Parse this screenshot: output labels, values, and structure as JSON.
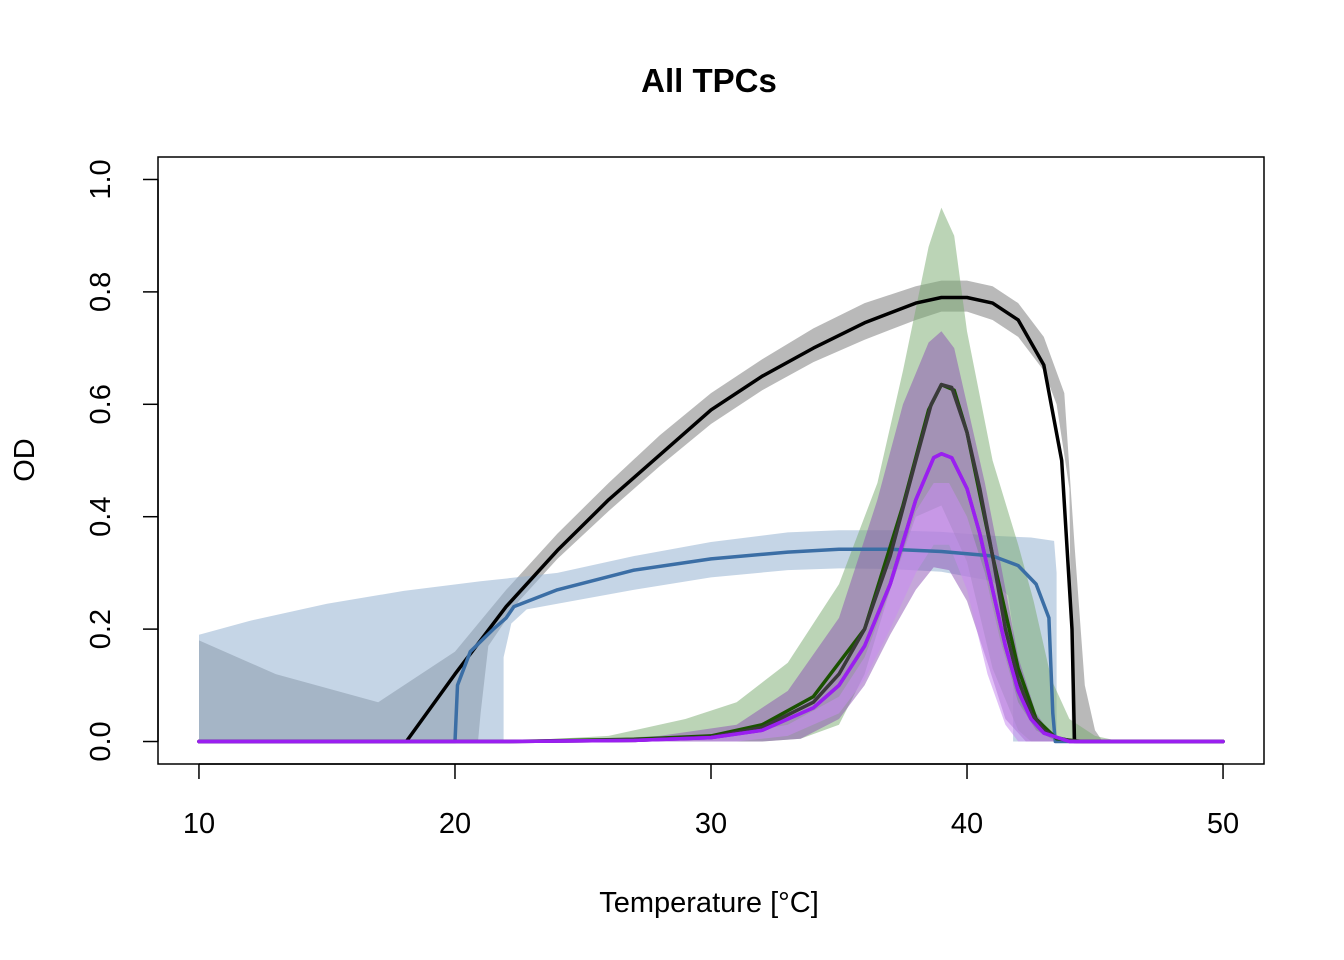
{
  "chart_data": {
    "type": "line",
    "title": "All TPCs",
    "xlabel": "Temperature [°C]",
    "ylabel": "OD",
    "xlim": [
      8.4,
      51.6
    ],
    "ylim": [
      -0.04,
      1.04
    ],
    "xticks": [
      10,
      20,
      30,
      40,
      50
    ],
    "yticks": [
      0.0,
      0.2,
      0.4,
      0.6,
      0.8,
      1.0
    ],
    "xtick_labels": [
      "10",
      "20",
      "30",
      "40",
      "50"
    ],
    "ytick_labels": [
      "0.0",
      "0.2",
      "0.4",
      "0.6",
      "0.8",
      "1.0"
    ],
    "grid": false,
    "legend": "none",
    "series": [
      {
        "color": "#000000",
        "band_color": "rgba(128,128,128,0.55)",
        "line": [
          [
            10,
            0
          ],
          [
            18.1,
            0
          ],
          [
            20,
            0.12
          ],
          [
            22,
            0.24
          ],
          [
            24,
            0.34
          ],
          [
            26,
            0.43
          ],
          [
            28,
            0.51
          ],
          [
            30,
            0.59
          ],
          [
            32,
            0.65
          ],
          [
            34,
            0.7
          ],
          [
            36,
            0.745
          ],
          [
            38,
            0.78
          ],
          [
            39,
            0.79
          ],
          [
            40,
            0.79
          ],
          [
            41,
            0.78
          ],
          [
            42,
            0.75
          ],
          [
            43,
            0.67
          ],
          [
            43.7,
            0.5
          ],
          [
            44.1,
            0.2
          ],
          [
            44.2,
            0
          ],
          [
            50,
            0
          ]
        ],
        "upper": [
          [
            10,
            0.18
          ],
          [
            13,
            0.12
          ],
          [
            17,
            0.07
          ],
          [
            20,
            0.16
          ],
          [
            22,
            0.27
          ],
          [
            24,
            0.37
          ],
          [
            26,
            0.46
          ],
          [
            28,
            0.545
          ],
          [
            30,
            0.62
          ],
          [
            32,
            0.68
          ],
          [
            34,
            0.735
          ],
          [
            36,
            0.78
          ],
          [
            38,
            0.81
          ],
          [
            39,
            0.82
          ],
          [
            40,
            0.82
          ],
          [
            41,
            0.81
          ],
          [
            42,
            0.78
          ],
          [
            43,
            0.72
          ],
          [
            43.8,
            0.62
          ],
          [
            44.2,
            0.35
          ],
          [
            44.6,
            0.1
          ],
          [
            45,
            0.02
          ],
          [
            45.3,
            0
          ],
          [
            50,
            0
          ]
        ],
        "lower": [
          [
            50,
            0
          ],
          [
            44.1,
            0
          ],
          [
            44,
            0.45
          ],
          [
            43.5,
            0.6
          ],
          [
            43,
            0.66
          ],
          [
            42,
            0.72
          ],
          [
            41,
            0.75
          ],
          [
            40,
            0.765
          ],
          [
            39,
            0.765
          ],
          [
            38,
            0.75
          ],
          [
            36,
            0.715
          ],
          [
            34,
            0.675
          ],
          [
            32,
            0.625
          ],
          [
            30,
            0.565
          ],
          [
            28,
            0.49
          ],
          [
            26,
            0.41
          ],
          [
            24,
            0.325
          ],
          [
            22.5,
            0.25
          ],
          [
            21.3,
            0.17
          ],
          [
            21,
            0.05
          ],
          [
            20.9,
            0
          ],
          [
            10,
            0
          ]
        ]
      },
      {
        "color": "#3b6ea5",
        "band_color": "rgba(150,178,210,0.55)",
        "line": [
          [
            10,
            0
          ],
          [
            20,
            0
          ],
          [
            20.1,
            0.1
          ],
          [
            20.6,
            0.16
          ],
          [
            21.5,
            0.2
          ],
          [
            22,
            0.22
          ],
          [
            22.3,
            0.24
          ],
          [
            24,
            0.27
          ],
          [
            27,
            0.305
          ],
          [
            30,
            0.325
          ],
          [
            33,
            0.337
          ],
          [
            35,
            0.342
          ],
          [
            37,
            0.342
          ],
          [
            39,
            0.338
          ],
          [
            41,
            0.33
          ],
          [
            42,
            0.313
          ],
          [
            42.7,
            0.28
          ],
          [
            43.2,
            0.22
          ],
          [
            43.35,
            0.05
          ],
          [
            43.45,
            0
          ],
          [
            50,
            0
          ]
        ],
        "upper": [
          [
            10,
            0.19
          ],
          [
            12,
            0.215
          ],
          [
            15,
            0.245
          ],
          [
            18,
            0.268
          ],
          [
            21,
            0.285
          ],
          [
            24,
            0.3
          ],
          [
            27,
            0.33
          ],
          [
            30,
            0.355
          ],
          [
            33,
            0.372
          ],
          [
            35,
            0.376
          ],
          [
            37,
            0.376
          ],
          [
            39,
            0.373
          ],
          [
            41,
            0.366
          ],
          [
            42.5,
            0.363
          ],
          [
            43.4,
            0.357
          ],
          [
            43.5,
            0.3
          ],
          [
            43.5,
            0
          ],
          [
            50,
            0
          ]
        ],
        "lower": [
          [
            50,
            0
          ],
          [
            41.8,
            0
          ],
          [
            41.8,
            0.2
          ],
          [
            41.6,
            0.26
          ],
          [
            41,
            0.285
          ],
          [
            39,
            0.302
          ],
          [
            37,
            0.307
          ],
          [
            35,
            0.308
          ],
          [
            33,
            0.305
          ],
          [
            30,
            0.292
          ],
          [
            27,
            0.27
          ],
          [
            24,
            0.245
          ],
          [
            22.8,
            0.235
          ],
          [
            22.2,
            0.21
          ],
          [
            21.9,
            0.15
          ],
          [
            21.9,
            0
          ],
          [
            10,
            0
          ]
        ]
      },
      {
        "color": "#1a5200",
        "band_color": "rgba(120,170,110,0.5)",
        "line": [
          [
            10,
            0
          ],
          [
            22,
            0
          ],
          [
            27,
            0.004
          ],
          [
            30,
            0.01
          ],
          [
            32,
            0.03
          ],
          [
            34,
            0.08
          ],
          [
            36,
            0.2
          ],
          [
            37.5,
            0.42
          ],
          [
            38.5,
            0.59
          ],
          [
            39,
            0.635
          ],
          [
            39.5,
            0.625
          ],
          [
            40,
            0.55
          ],
          [
            41,
            0.33
          ],
          [
            42,
            0.13
          ],
          [
            42.7,
            0.04
          ],
          [
            43.5,
            0.005
          ],
          [
            44.5,
            0
          ],
          [
            50,
            0
          ]
        ],
        "upper": [
          [
            10,
            0
          ],
          [
            22,
            0
          ],
          [
            26,
            0.01
          ],
          [
            29,
            0.04
          ],
          [
            31,
            0.07
          ],
          [
            33,
            0.14
          ],
          [
            35,
            0.28
          ],
          [
            36.5,
            0.46
          ],
          [
            37.5,
            0.66
          ],
          [
            38.5,
            0.88
          ],
          [
            39,
            0.95
          ],
          [
            39.5,
            0.9
          ],
          [
            40,
            0.73
          ],
          [
            41,
            0.5
          ],
          [
            42,
            0.35
          ],
          [
            42.6,
            0.25
          ],
          [
            43.3,
            0.11
          ],
          [
            44,
            0.04
          ],
          [
            45,
            0.01
          ],
          [
            46,
            0
          ],
          [
            50,
            0
          ]
        ],
        "lower": [
          [
            50,
            0
          ],
          [
            42.5,
            0
          ],
          [
            42,
            0.02
          ],
          [
            41,
            0.13
          ],
          [
            40,
            0.32
          ],
          [
            39,
            0.42
          ],
          [
            38,
            0.4
          ],
          [
            37,
            0.27
          ],
          [
            36,
            0.12
          ],
          [
            35,
            0.03
          ],
          [
            33.5,
            0.005
          ],
          [
            32,
            0
          ],
          [
            10,
            0
          ]
        ]
      },
      {
        "color": "#3a3a3a",
        "band_color": "rgba(120,120,120,0)",
        "line": [
          [
            10,
            0
          ],
          [
            22,
            0
          ],
          [
            27,
            0.002
          ],
          [
            30,
            0.008
          ],
          [
            32,
            0.025
          ],
          [
            34,
            0.07
          ],
          [
            35,
            0.12
          ],
          [
            36,
            0.2
          ],
          [
            37,
            0.33
          ],
          [
            38,
            0.5
          ],
          [
            38.6,
            0.6
          ],
          [
            39,
            0.635
          ],
          [
            39.4,
            0.63
          ],
          [
            40,
            0.55
          ],
          [
            40.5,
            0.45
          ],
          [
            41,
            0.33
          ],
          [
            41.5,
            0.2
          ],
          [
            42,
            0.11
          ],
          [
            42.5,
            0.05
          ],
          [
            43,
            0.02
          ],
          [
            43.5,
            0.007
          ],
          [
            44,
            0.002
          ],
          [
            44.3,
            0
          ],
          [
            50,
            0
          ]
        ]
      },
      {
        "color": "#8b10e0",
        "band_color": "rgba(140,80,180,0.5)",
        "line": [
          [
            10,
            0
          ],
          [
            22,
            0
          ],
          [
            27,
            0.002
          ],
          [
            30,
            0.007
          ],
          [
            32,
            0.02
          ],
          [
            34,
            0.06
          ],
          [
            35,
            0.1
          ],
          [
            36,
            0.17
          ],
          [
            37,
            0.28
          ],
          [
            38,
            0.43
          ],
          [
            38.7,
            0.505
          ],
          [
            39,
            0.512
          ],
          [
            39.4,
            0.505
          ],
          [
            40,
            0.45
          ],
          [
            40.5,
            0.37
          ],
          [
            41,
            0.27
          ],
          [
            41.5,
            0.17
          ],
          [
            42,
            0.09
          ],
          [
            42.5,
            0.04
          ],
          [
            43,
            0.015
          ],
          [
            44,
            0
          ],
          [
            50,
            0
          ]
        ],
        "upper": [
          [
            10,
            0
          ],
          [
            24,
            0
          ],
          [
            28,
            0.01
          ],
          [
            31,
            0.03
          ],
          [
            33,
            0.09
          ],
          [
            35,
            0.22
          ],
          [
            36.5,
            0.43
          ],
          [
            37.5,
            0.6
          ],
          [
            38.5,
            0.71
          ],
          [
            39,
            0.73
          ],
          [
            39.5,
            0.7
          ],
          [
            40,
            0.6
          ],
          [
            40.7,
            0.46
          ],
          [
            41.3,
            0.32
          ],
          [
            42,
            0.15
          ],
          [
            42.7,
            0.05
          ],
          [
            43.5,
            0
          ],
          [
            50,
            0
          ]
        ],
        "lower": [
          [
            50,
            0
          ],
          [
            42.3,
            0
          ],
          [
            41.5,
            0.04
          ],
          [
            40.8,
            0.14
          ],
          [
            40,
            0.25
          ],
          [
            39.3,
            0.305
          ],
          [
            38.7,
            0.31
          ],
          [
            38,
            0.27
          ],
          [
            37,
            0.19
          ],
          [
            36,
            0.1
          ],
          [
            35,
            0.04
          ],
          [
            33.5,
            0.005
          ],
          [
            32,
            0
          ],
          [
            10,
            0
          ]
        ]
      },
      {
        "color": "#9a1ff0",
        "band_color": "rgba(200,140,240,0.55)",
        "line": [
          [
            10,
            0
          ],
          [
            22,
            0
          ],
          [
            27,
            0.002
          ],
          [
            30,
            0.007
          ],
          [
            32,
            0.02
          ],
          [
            34,
            0.06
          ],
          [
            35,
            0.1
          ],
          [
            36,
            0.17
          ],
          [
            37,
            0.28
          ],
          [
            38,
            0.43
          ],
          [
            38.7,
            0.505
          ],
          [
            39,
            0.512
          ],
          [
            39.4,
            0.505
          ],
          [
            40,
            0.45
          ],
          [
            40.5,
            0.37
          ],
          [
            41,
            0.27
          ],
          [
            41.5,
            0.17
          ],
          [
            42,
            0.09
          ],
          [
            42.5,
            0.04
          ],
          [
            43,
            0.015
          ],
          [
            44,
            0
          ],
          [
            50,
            0
          ]
        ],
        "upper": [
          [
            10,
            0
          ],
          [
            30,
            0.005
          ],
          [
            33,
            0.03
          ],
          [
            35,
            0.08
          ],
          [
            36,
            0.15
          ],
          [
            37,
            0.27
          ],
          [
            38,
            0.41
          ],
          [
            38.7,
            0.46
          ],
          [
            39.3,
            0.46
          ],
          [
            40,
            0.4
          ],
          [
            40.7,
            0.3
          ],
          [
            41.3,
            0.18
          ],
          [
            42,
            0.07
          ],
          [
            42.7,
            0.02
          ],
          [
            43.5,
            0
          ],
          [
            50,
            0
          ]
        ],
        "lower": [
          [
            50,
            0
          ],
          [
            42,
            0
          ],
          [
            41.5,
            0.03
          ],
          [
            40.8,
            0.12
          ],
          [
            40,
            0.27
          ],
          [
            39.3,
            0.35
          ],
          [
            38.7,
            0.35
          ],
          [
            38,
            0.3
          ],
          [
            37,
            0.2
          ],
          [
            36,
            0.11
          ],
          [
            35,
            0.05
          ],
          [
            33,
            0.01
          ],
          [
            31,
            0
          ],
          [
            10,
            0
          ]
        ]
      }
    ]
  }
}
